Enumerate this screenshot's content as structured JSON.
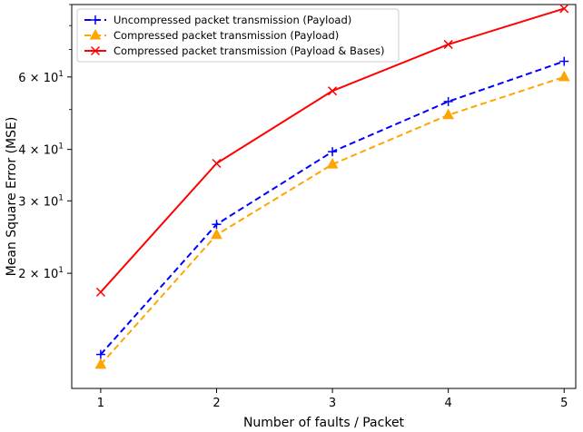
{
  "chart_data": {
    "type": "line",
    "x": [
      1,
      2,
      3,
      4,
      5
    ],
    "xlabel": "Number of faults / Packet",
    "ylabel": "Mean Square Error (MSE)",
    "yscale": "log",
    "ylim": [
      10.5,
      90
    ],
    "xlim": [
      0.75,
      5.1
    ],
    "x_ticks": [
      "1",
      "2",
      "3",
      "4",
      "5"
    ],
    "y_major_ticks": [
      {
        "value": 20,
        "label_base": "2 × 10",
        "label_exp": "1"
      },
      {
        "value": 30,
        "label_base": "3 × 10",
        "label_exp": "1"
      },
      {
        "value": 40,
        "label_base": "4 × 10",
        "label_exp": "1"
      },
      {
        "value": 60,
        "label_base": "6 × 10",
        "label_exp": "1"
      }
    ],
    "y_minor_ticks": [
      50,
      70,
      80,
      90
    ],
    "grid": false,
    "legend_position": "top-left",
    "series": [
      {
        "name": "Uncompressed packet transmission (Payload)",
        "values": [
          12.7,
          26.3,
          39.5,
          52.3,
          65.5
        ],
        "color": "#0000ff",
        "line_style": "dashed",
        "marker": "plus"
      },
      {
        "name": "Compressed packet transmission (Payload)",
        "values": [
          12.0,
          24.8,
          36.8,
          48.5,
          60.0
        ],
        "color": "#ffa500",
        "line_style": "dashed",
        "marker": "triangle"
      },
      {
        "name": "Compressed packet transmission (Payload & Bases)",
        "values": [
          18.0,
          37.0,
          55.5,
          72.0,
          88.0
        ],
        "color": "#ff0000",
        "line_style": "solid",
        "marker": "x"
      }
    ]
  }
}
